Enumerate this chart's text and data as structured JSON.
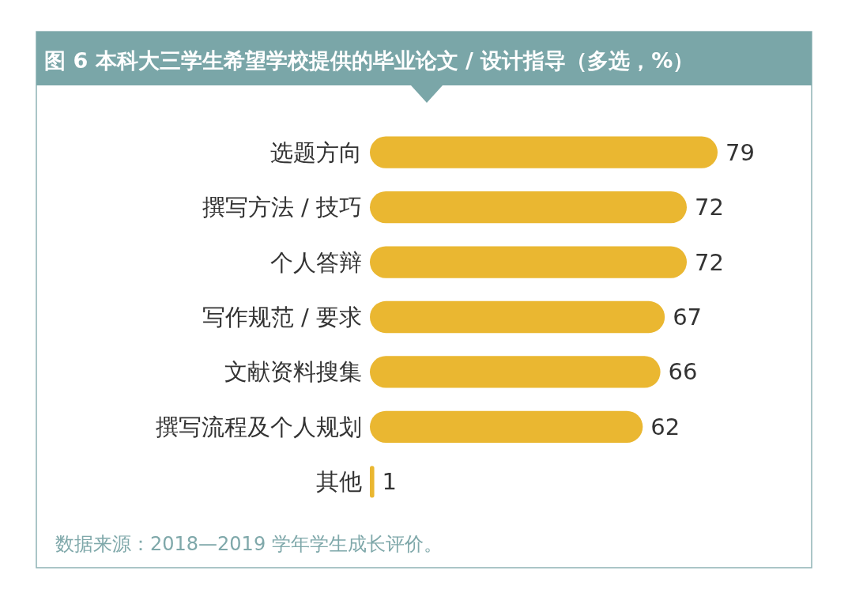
{
  "chart_data": {
    "type": "bar",
    "orientation": "horizontal",
    "title": "图 6 本科大三学生希望学校提供的毕业论文 / 设计指导（多选，%）",
    "categories": [
      "选题方向",
      "撰写方法 / 技巧",
      "个人答辩",
      "写作规范 / 要求",
      "文献资料搜集",
      "撰写流程及个人规划",
      "其他"
    ],
    "values": [
      79,
      72,
      72,
      67,
      66,
      62,
      1
    ],
    "color": "#eab731",
    "data_labels": true,
    "annotations": [
      "数据来源：2018—2019 学年学生成长评价。"
    ]
  }
}
